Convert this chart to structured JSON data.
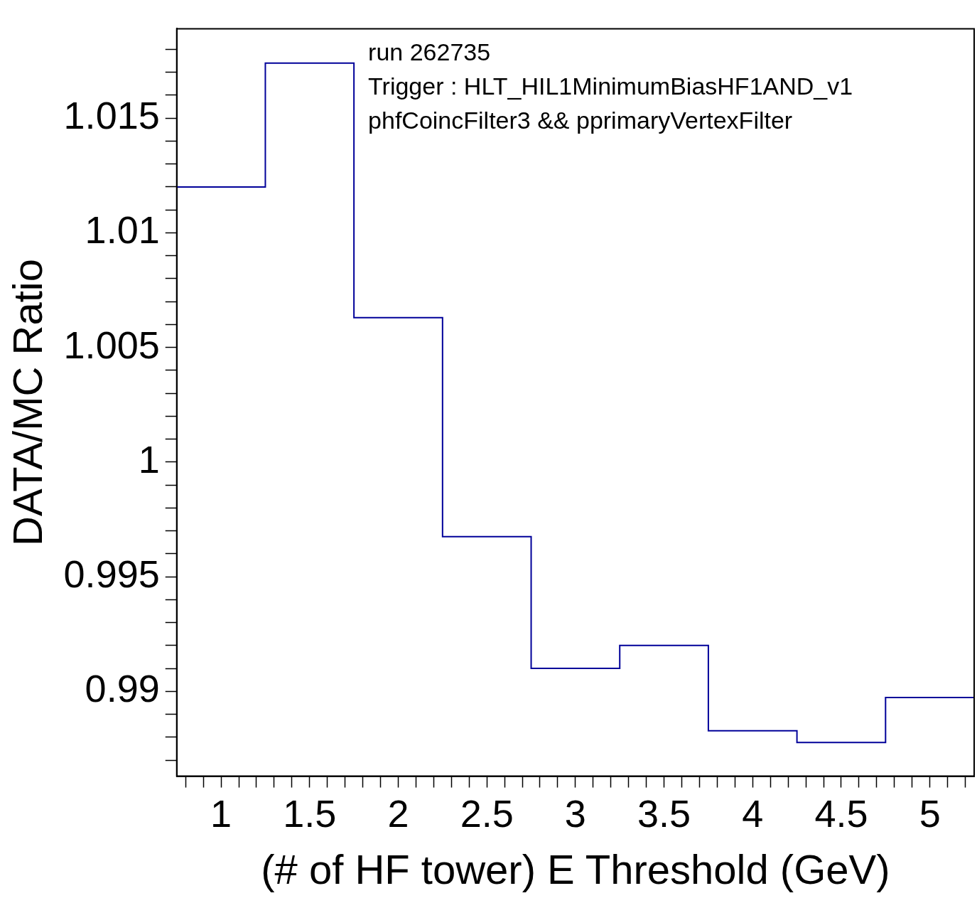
{
  "chart_data": {
    "type": "histogram",
    "xlabel": "(# of HF tower) E Threshold (GeV)",
    "ylabel": "DATA/MC Ratio",
    "annotations": [
      "run 262735",
      "Trigger : HLT_HIL1MinimumBiasHF1AND_v1",
      "phfCoincFilter3 && pprimaryVertexFilter"
    ],
    "bins": [
      0.75,
      1.25,
      1.75,
      2.25,
      2.75,
      3.25,
      3.75,
      4.25,
      4.75,
      5.25
    ],
    "values": [
      1.012,
      1.0174,
      1.0063,
      0.99675,
      0.991,
      0.992,
      0.98828,
      0.98777,
      0.98973
    ],
    "color": "#000099",
    "grid": false,
    "legend": false,
    "xlim": [
      0.75,
      5.25
    ],
    "ylim": [
      0.9863,
      1.0189
    ],
    "xticks": [
      {
        "value": 0.8,
        "label": null
      },
      {
        "value": 0.9,
        "label": null
      },
      1,
      {
        "value": 1.1,
        "label": null
      },
      {
        "value": 1.2,
        "label": null
      },
      {
        "value": 1.3,
        "label": null
      },
      {
        "value": 1.4,
        "label": null
      },
      1.5,
      {
        "value": 1.6,
        "label": null
      },
      {
        "value": 1.7,
        "label": null
      },
      {
        "value": 1.8,
        "label": null
      },
      {
        "value": 1.9,
        "label": null
      },
      2,
      {
        "value": 2.1,
        "label": null
      },
      {
        "value": 2.2,
        "label": null
      },
      {
        "value": 2.3,
        "label": null
      },
      {
        "value": 2.4,
        "label": null
      },
      2.5,
      {
        "value": 2.6,
        "label": null
      },
      {
        "value": 2.7,
        "label": null
      },
      {
        "value": 2.8,
        "label": null
      },
      {
        "value": 2.9,
        "label": null
      },
      3,
      {
        "value": 3.1,
        "label": null
      },
      {
        "value": 3.2,
        "label": null
      },
      {
        "value": 3.3,
        "label": null
      },
      {
        "value": 3.4,
        "label": null
      },
      3.5,
      {
        "value": 3.6,
        "label": null
      },
      {
        "value": 3.7,
        "label": null
      },
      {
        "value": 3.8,
        "label": null
      },
      {
        "value": 3.9,
        "label": null
      },
      4,
      {
        "value": 4.1,
        "label": null
      },
      {
        "value": 4.2,
        "label": null
      },
      {
        "value": 4.3,
        "label": null
      },
      {
        "value": 4.4,
        "label": null
      },
      4.5,
      {
        "value": 4.6,
        "label": null
      },
      {
        "value": 4.7,
        "label": null
      },
      {
        "value": 4.8,
        "label": null
      },
      {
        "value": 4.9,
        "label": null
      },
      5,
      {
        "value": 5.1,
        "label": null
      },
      {
        "value": 5.2,
        "label": null
      }
    ],
    "yticks": [
      {
        "value": 0.987,
        "label": null
      },
      {
        "value": 0.988,
        "label": null
      },
      {
        "value": 0.989,
        "label": null
      },
      0.99,
      {
        "value": 0.991,
        "label": null
      },
      {
        "value": 0.992,
        "label": null
      },
      {
        "value": 0.993,
        "label": null
      },
      {
        "value": 0.994,
        "label": null
      },
      0.995,
      {
        "value": 0.996,
        "label": null
      },
      {
        "value": 0.997,
        "label": null
      },
      {
        "value": 0.998,
        "label": null
      },
      {
        "value": 0.999,
        "label": null
      },
      1,
      {
        "value": 1.001,
        "label": null
      },
      {
        "value": 1.002,
        "label": null
      },
      {
        "value": 1.003,
        "label": null
      },
      {
        "value": 1.004,
        "label": null
      },
      1.005,
      {
        "value": 1.006,
        "label": null
      },
      {
        "value": 1.007,
        "label": null
      },
      {
        "value": 1.008,
        "label": null
      },
      {
        "value": 1.009,
        "label": null
      },
      1.01,
      {
        "value": 1.011,
        "label": null
      },
      {
        "value": 1.012,
        "label": null
      },
      {
        "value": 1.013,
        "label": null
      },
      {
        "value": 1.014,
        "label": null
      },
      1.015,
      {
        "value": 1.016,
        "label": null
      },
      {
        "value": 1.017,
        "label": null
      },
      {
        "value": 1.018,
        "label": null
      }
    ]
  }
}
